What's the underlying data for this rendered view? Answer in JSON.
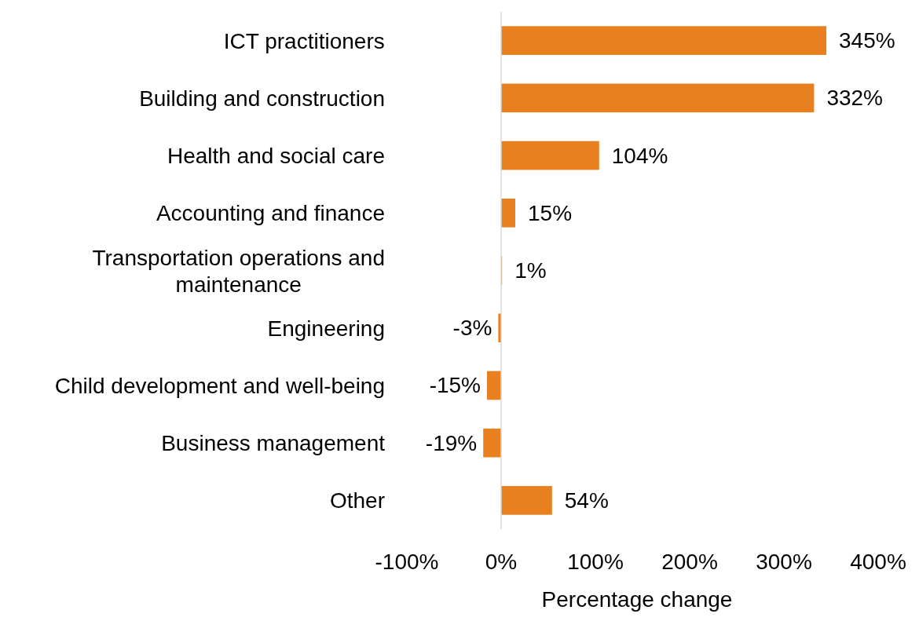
{
  "chart_data": {
    "type": "bar",
    "orientation": "horizontal",
    "xlabel": "Percentage change",
    "categories": [
      "ICT practitioners",
      "Building and construction",
      "Health and social care",
      "Accounting and finance",
      "Transportation operations and maintenance",
      "Engineering",
      "Child development and well-being",
      "Business management",
      "Other"
    ],
    "values": [
      345,
      332,
      104,
      15,
      1,
      -3,
      -15,
      -19,
      54
    ],
    "value_labels": [
      "345%",
      "332%",
      "104%",
      "15%",
      "1%",
      "-3%",
      "-15%",
      "-19%",
      "54%"
    ],
    "color": "#e8801f",
    "xlim": [
      -100,
      400
    ],
    "xticks": [
      {
        "value": -100,
        "label": "-100%"
      },
      {
        "value": 0,
        "label": "0%"
      },
      {
        "value": 100,
        "label": "100%"
      },
      {
        "value": 200,
        "label": "200%"
      },
      {
        "value": 300,
        "label": "300%"
      },
      {
        "value": 400,
        "label": "400%"
      }
    ]
  }
}
